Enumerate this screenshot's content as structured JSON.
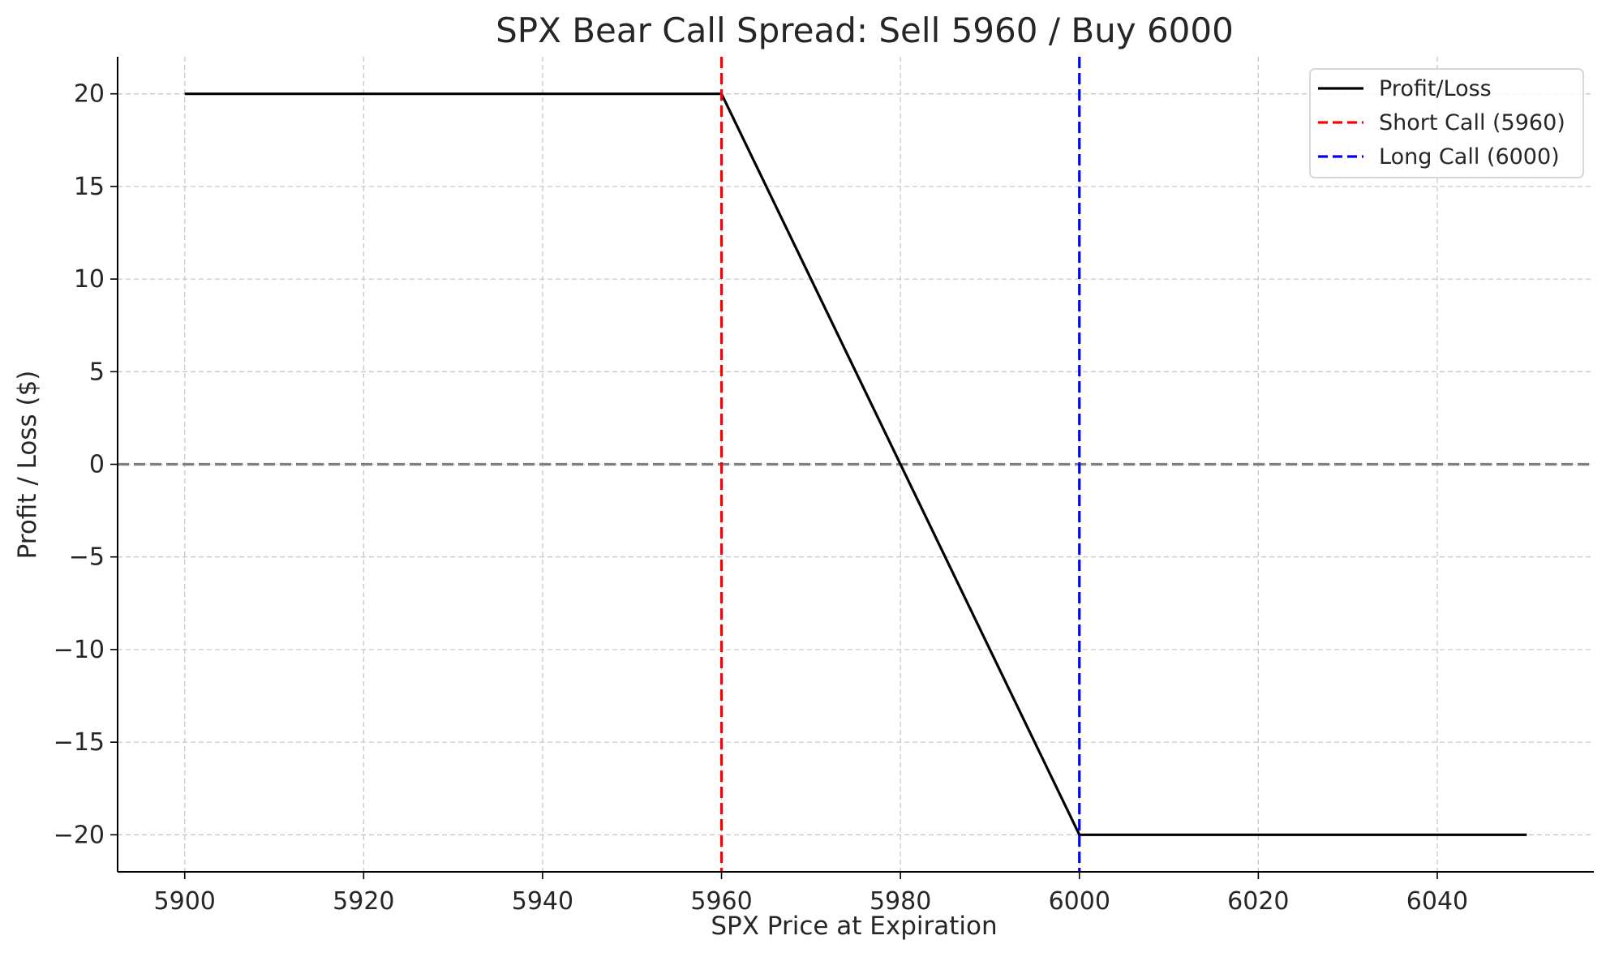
{
  "chart_data": {
    "type": "line",
    "title": "SPX Bear Call Spread: Sell 5960 / Buy 6000",
    "xlabel": "SPX Price at Expiration",
    "ylabel": "Profit / Loss ($)",
    "xlim": [
      5892.5,
      6057.5
    ],
    "ylim": [
      -22,
      22
    ],
    "x_ticks": [
      5900,
      5920,
      5940,
      5960,
      5980,
      6000,
      6020,
      6040
    ],
    "x_tick_labels": [
      "5900",
      "5920",
      "5940",
      "5960",
      "5980",
      "6000",
      "6020",
      "6040"
    ],
    "y_ticks": [
      20,
      15,
      10,
      5,
      0,
      -5,
      -10,
      -15,
      -20
    ],
    "y_tick_labels": [
      "20",
      "15",
      "10",
      "5",
      "0",
      "−5",
      "−10",
      "−15",
      "−20"
    ],
    "grid": true,
    "legend_position": "top-right",
    "series": [
      {
        "name": "Profit/Loss",
        "style": "solid",
        "color": "#000000",
        "x": [
          5900,
          5960,
          6000,
          6050
        ],
        "y": [
          20,
          20,
          -20,
          -20
        ]
      }
    ],
    "vlines": [
      {
        "name": "Short Call (5960)",
        "x": 5960,
        "color": "#ff0000",
        "style": "dashed"
      },
      {
        "name": "Long Call (6000)",
        "x": 6000,
        "color": "#0000ff",
        "style": "dashed"
      }
    ],
    "hlines": [
      {
        "y": 0,
        "color": "#808080",
        "style": "dashed"
      }
    ]
  }
}
